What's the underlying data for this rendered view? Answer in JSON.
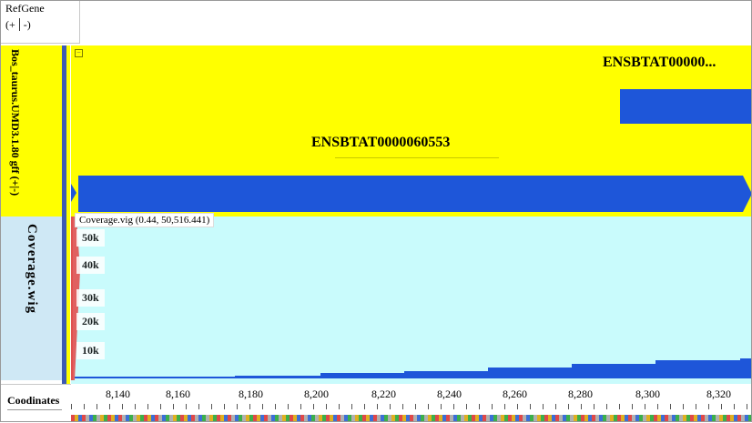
{
  "refgene": {
    "title": "RefGene",
    "strand_open": "(+",
    "strand_close": "-)"
  },
  "tracks": {
    "gff_label": "Bos_taurus.UMD3.1.80 gff (+|-)",
    "coverage_label": "Coverage.wig",
    "coordinates_label": "Coodinates"
  },
  "genes": {
    "gene1": "ENSBTAT00000...",
    "gene2": "ENSBTAT0000060553",
    "color": "#1e56d9"
  },
  "coverage": {
    "tooltip": "Coverage.vig (0.44, 50,516.441)",
    "ticks": [
      "50k",
      "40k",
      "30k",
      "20k",
      "10k"
    ],
    "background": "#c9fbfc",
    "bar_color": "#1e56d9"
  },
  "coordinates": {
    "ticks": [
      "8,140",
      "8,160",
      "8,180",
      "8,200",
      "8,220",
      "8,240",
      "8,260",
      "8,280",
      "8,300",
      "8,320"
    ]
  },
  "colors": {
    "gene_track_bg": "#ffff00",
    "coverage_label_bg": "#cfe8f5"
  }
}
